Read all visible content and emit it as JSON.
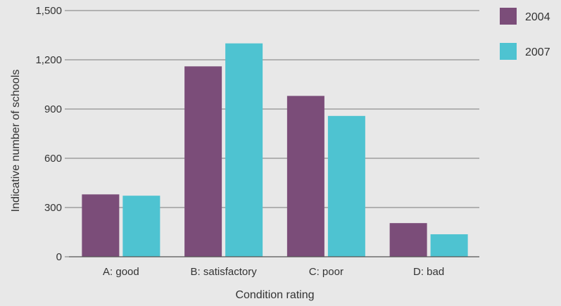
{
  "chart_data": {
    "type": "bar",
    "categories": [
      "A: good",
      "B: satisfactory",
      "C: poor",
      "D: bad"
    ],
    "series": [
      {
        "name": "2004",
        "color": "#7b4d79",
        "values": [
          380,
          1160,
          980,
          205
        ]
      },
      {
        "name": "2007",
        "color": "#4ec3d1",
        "values": [
          372,
          1300,
          858,
          137
        ]
      }
    ],
    "xlabel": "Condition rating",
    "ylabel": "Indicative number of schools",
    "ylim": [
      0,
      1500
    ],
    "yticks": [
      0,
      300,
      600,
      900,
      1200,
      1500
    ],
    "ytick_labels": [
      "0",
      "300",
      "600",
      "900",
      "1,200",
      "1,500"
    ],
    "grid": true,
    "legend_position": "right"
  }
}
